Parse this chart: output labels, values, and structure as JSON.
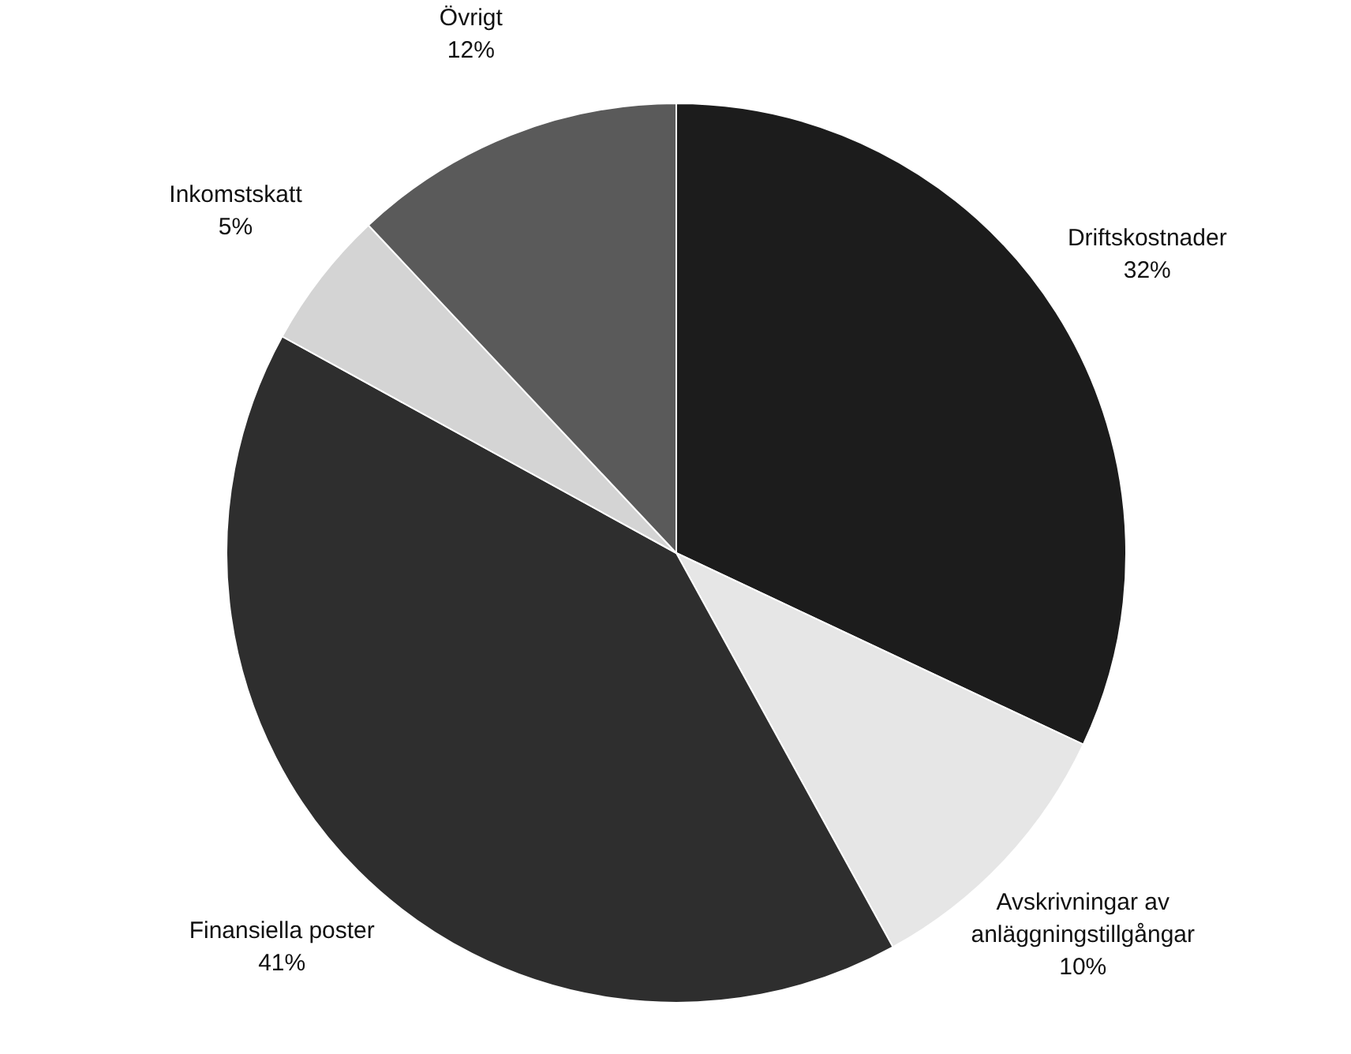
{
  "chart_data": {
    "type": "pie",
    "categories": [
      "Driftskostnader",
      "Avskrivningar av anläggningstillgångar",
      "Finansiella poster",
      "Inkomstskatt",
      "Övrigt"
    ],
    "values": [
      32,
      10,
      41,
      5,
      12
    ],
    "value_labels": [
      "32%",
      "10%",
      "41%",
      "5%",
      "12%"
    ],
    "colors": [
      "#1c1c1c",
      "#e6e6e6",
      "#2e2e2e",
      "#d4d4d4",
      "#5a5a5a"
    ]
  }
}
